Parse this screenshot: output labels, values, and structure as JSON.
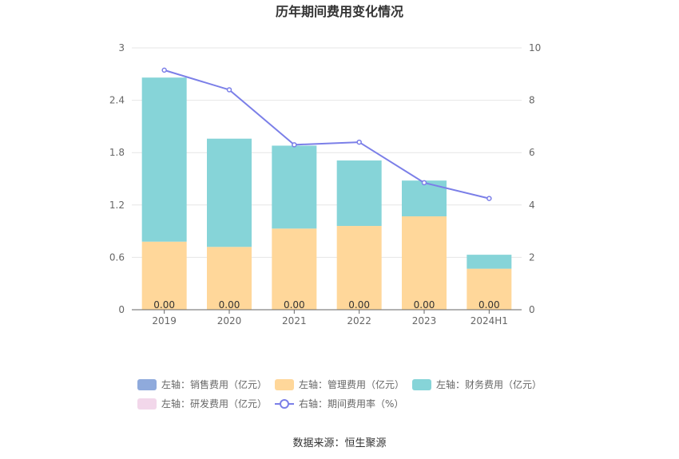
{
  "chart_data": {
    "type": "bar",
    "title": "历年期间费用变化情况",
    "categories": [
      "2019",
      "2020",
      "2021",
      "2022",
      "2023",
      "2024H1"
    ],
    "left_axis": {
      "ticks": [
        "0",
        "0.6",
        "1.2",
        "1.8",
        "2.4",
        "3"
      ],
      "ylim": [
        0,
        3
      ]
    },
    "right_axis": {
      "ticks": [
        "0",
        "2",
        "4",
        "6",
        "8",
        "10"
      ],
      "ylim": [
        0,
        10
      ]
    },
    "series": [
      {
        "name": "左轴：销售费用（亿元）",
        "type": "bar",
        "axis": "left",
        "color": "#8faadc",
        "values": [
          0,
          0,
          0,
          0,
          0,
          0
        ],
        "labels": [
          "0.00",
          "0.00",
          "0.00",
          "0.00",
          "0.00",
          "0.00"
        ]
      },
      {
        "name": "左轴：管理费用（亿元）",
        "type": "bar",
        "axis": "left",
        "color": "#ffd79a",
        "values": [
          0.78,
          0.72,
          0.93,
          0.96,
          1.07,
          0.47
        ]
      },
      {
        "name": "左轴：财务费用（亿元）",
        "type": "bar",
        "axis": "left",
        "color": "#86d4d8",
        "values": [
          1.88,
          1.24,
          0.95,
          0.75,
          0.41,
          0.16
        ]
      },
      {
        "name": "左轴：研发费用（亿元）",
        "type": "bar",
        "axis": "left",
        "color": "#f2d7ea",
        "values": [
          0,
          0,
          0,
          0,
          0,
          0
        ]
      },
      {
        "name": "右轴：期间费用率（%）",
        "type": "line",
        "axis": "right",
        "color": "#7b7fe8",
        "values": [
          9.15,
          8.4,
          6.3,
          6.4,
          4.85,
          4.25
        ]
      }
    ],
    "grid": true,
    "legend": "bottom",
    "source": "数据来源：恒生聚源"
  }
}
